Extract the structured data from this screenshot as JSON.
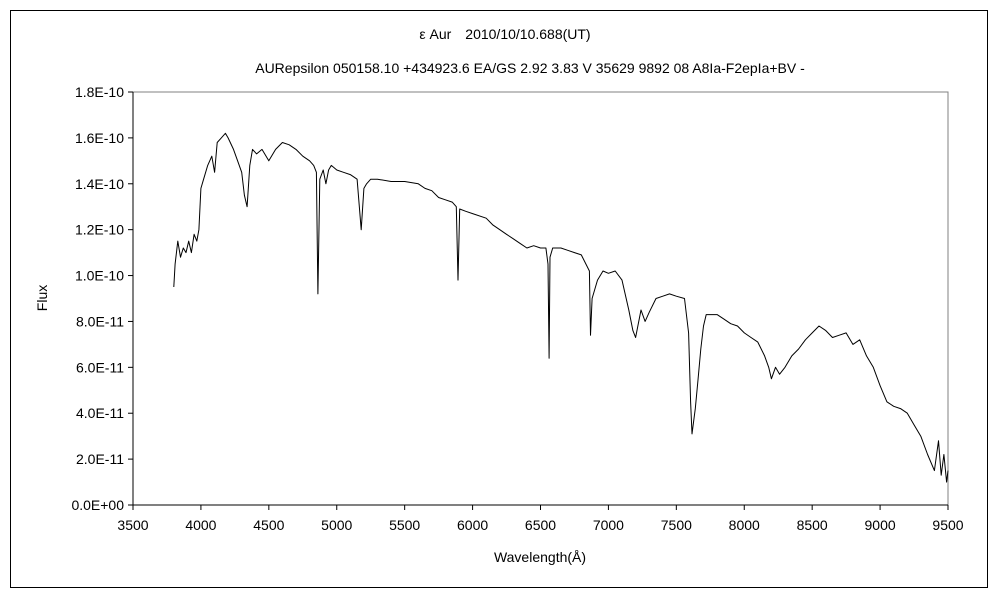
{
  "chart_data": {
    "type": "line",
    "title": "ε Aur　2010/10/10.688(UT)",
    "subtitle": "AURepsilon 050158.10 +434923.6 EA/GS 2.92 3.83 V 35629 9892 08 A8Ia-F2epIa+BV -",
    "xlabel": "Wavelength(Å)",
    "ylabel": "Flux",
    "xlim": [
      3500,
      9500
    ],
    "ylim": [
      0,
      1.8e-10
    ],
    "xticks": [
      3500,
      4000,
      4500,
      5000,
      5500,
      6000,
      6500,
      7000,
      7500,
      8000,
      8500,
      9000,
      9500
    ],
    "xtick_labels": [
      "3500",
      "4000",
      "4500",
      "5000",
      "5500",
      "6000",
      "6500",
      "7000",
      "7500",
      "8000",
      "8500",
      "9000",
      "9500"
    ],
    "yticks": [
      0,
      2e-11,
      4e-11,
      6e-11,
      8e-11,
      1e-10,
      1.2e-10,
      1.4e-10,
      1.6e-10,
      1.8e-10
    ],
    "ytick_labels": [
      "0.0E+00",
      "2.0E-11",
      "4.0E-11",
      "6.0E-11",
      "8.0E-11",
      "1.0E-10",
      "1.2E-10",
      "1.4E-10",
      "1.6E-10",
      "1.8E-10"
    ],
    "grid": false,
    "legend": "none",
    "line_color": "#000000",
    "series": [
      {
        "x": [
          3800,
          3810,
          3830,
          3850,
          3870,
          3890,
          3910,
          3930,
          3950,
          3970,
          3985,
          4000,
          4020,
          4050,
          4080,
          4101,
          4120,
          4150,
          4180,
          4200,
          4240,
          4270,
          4300,
          4320,
          4340,
          4360,
          4380,
          4410,
          4450,
          4500,
          4550,
          4600,
          4650,
          4700,
          4750,
          4800,
          4830,
          4850,
          4861,
          4875,
          4900,
          4920,
          4940,
          4960,
          5000,
          5050,
          5100,
          5150,
          5180,
          5200,
          5220,
          5250,
          5300,
          5400,
          5500,
          5600,
          5650,
          5700,
          5750,
          5800,
          5850,
          5880,
          5893,
          5905,
          5950,
          6000,
          6100,
          6150,
          6200,
          6250,
          6300,
          6350,
          6400,
          6450,
          6500,
          6540,
          6555,
          6563,
          6570,
          6590,
          6650,
          6700,
          6750,
          6800,
          6860,
          6868,
          6880,
          6920,
          6960,
          7000,
          7050,
          7100,
          7150,
          7180,
          7200,
          7240,
          7270,
          7300,
          7350,
          7400,
          7450,
          7500,
          7560,
          7590,
          7605,
          7615,
          7640,
          7660,
          7680,
          7700,
          7720,
          7800,
          7850,
          7900,
          7950,
          8000,
          8050,
          8100,
          8150,
          8180,
          8200,
          8230,
          8260,
          8300,
          8350,
          8400,
          8450,
          8500,
          8550,
          8600,
          8650,
          8700,
          8750,
          8800,
          8850,
          8900,
          8950,
          9000,
          9050,
          9100,
          9150,
          9200,
          9250,
          9300,
          9350,
          9400,
          9430,
          9450,
          9470,
          9490,
          9500
        ],
        "y": [
          9.5e-11,
          1.05e-10,
          1.15e-10,
          1.08e-10,
          1.12e-10,
          1.1e-10,
          1.15e-10,
          1.1e-10,
          1.18e-10,
          1.15e-10,
          1.2e-10,
          1.38e-10,
          1.42e-10,
          1.48e-10,
          1.52e-10,
          1.45e-10,
          1.58e-10,
          1.6e-10,
          1.62e-10,
          1.6e-10,
          1.55e-10,
          1.5e-10,
          1.45e-10,
          1.35e-10,
          1.3e-10,
          1.48e-10,
          1.55e-10,
          1.53e-10,
          1.55e-10,
          1.5e-10,
          1.55e-10,
          1.58e-10,
          1.57e-10,
          1.55e-10,
          1.52e-10,
          1.5e-10,
          1.48e-10,
          1.45e-10,
          9.2e-11,
          1.42e-10,
          1.46e-10,
          1.4e-10,
          1.46e-10,
          1.48e-10,
          1.46e-10,
          1.45e-10,
          1.44e-10,
          1.42e-10,
          1.2e-10,
          1.38e-10,
          1.4e-10,
          1.42e-10,
          1.42e-10,
          1.41e-10,
          1.41e-10,
          1.4e-10,
          1.38e-10,
          1.37e-10,
          1.34e-10,
          1.33e-10,
          1.32e-10,
          1.3e-10,
          9.8e-11,
          1.29e-10,
          1.28e-10,
          1.27e-10,
          1.25e-10,
          1.22e-10,
          1.2e-10,
          1.18e-10,
          1.16e-10,
          1.14e-10,
          1.12e-10,
          1.13e-10,
          1.12e-10,
          1.12e-10,
          1.05e-10,
          6.4e-11,
          1.08e-10,
          1.12e-10,
          1.12e-10,
          1.11e-10,
          1.1e-10,
          1.09e-10,
          1.02e-10,
          7.4e-11,
          9e-11,
          9.8e-11,
          1.02e-10,
          1.01e-10,
          1.02e-10,
          9.8e-11,
          8.5e-11,
          7.6e-11,
          7.3e-11,
          8.5e-11,
          8e-11,
          8.4e-11,
          9e-11,
          9.1e-11,
          9.2e-11,
          9.1e-11,
          9e-11,
          7.5e-11,
          4.5e-11,
          3.1e-11,
          4.2e-11,
          5.5e-11,
          6.8e-11,
          7.8e-11,
          8.3e-11,
          8.3e-11,
          8.1e-11,
          7.9e-11,
          7.8e-11,
          7.5e-11,
          7.3e-11,
          7.1e-11,
          6.5e-11,
          6e-11,
          5.5e-11,
          6e-11,
          5.7e-11,
          6e-11,
          6.5e-11,
          6.8e-11,
          7.2e-11,
          7.5e-11,
          7.8e-11,
          7.6e-11,
          7.3e-11,
          7.4e-11,
          7.5e-11,
          7e-11,
          7.2e-11,
          6.5e-11,
          6e-11,
          5.2e-11,
          4.5e-11,
          4.3e-11,
          4.2e-11,
          4e-11,
          3.5e-11,
          3e-11,
          2.2e-11,
          1.5e-11,
          2.8e-11,
          1.3e-11,
          2.2e-11,
          1e-11,
          1.5e-11
        ]
      }
    ]
  }
}
